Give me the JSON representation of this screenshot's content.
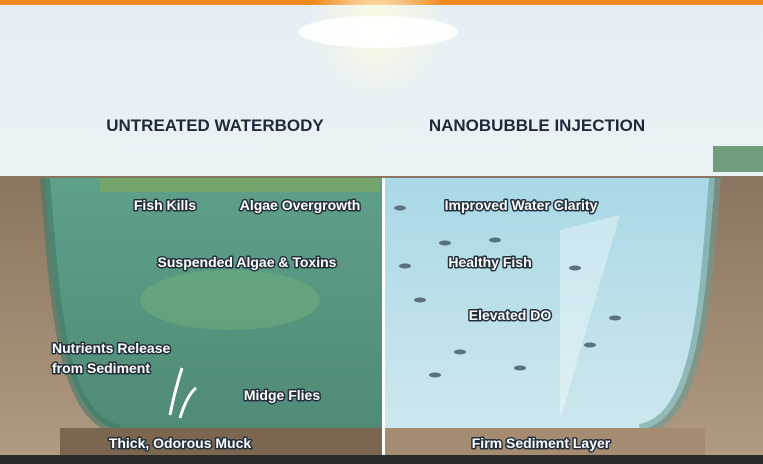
{
  "left": {
    "title": "UNTREATED WATERBODY",
    "labels": [
      "Fish Kills",
      "Algae Overgrowth",
      "Suspended Algae & Toxins",
      "Midge Flies",
      "Thick, Odorous Muck"
    ],
    "nutrients": [
      "Nutrients Release",
      "from Sediment"
    ]
  },
  "right": {
    "title": "NANOBUBBLE INJECTION",
    "labels": [
      "Improved Water Clarity",
      "Healthy Fish",
      "Elevated DO",
      "Firm Sediment Layer"
    ]
  }
}
